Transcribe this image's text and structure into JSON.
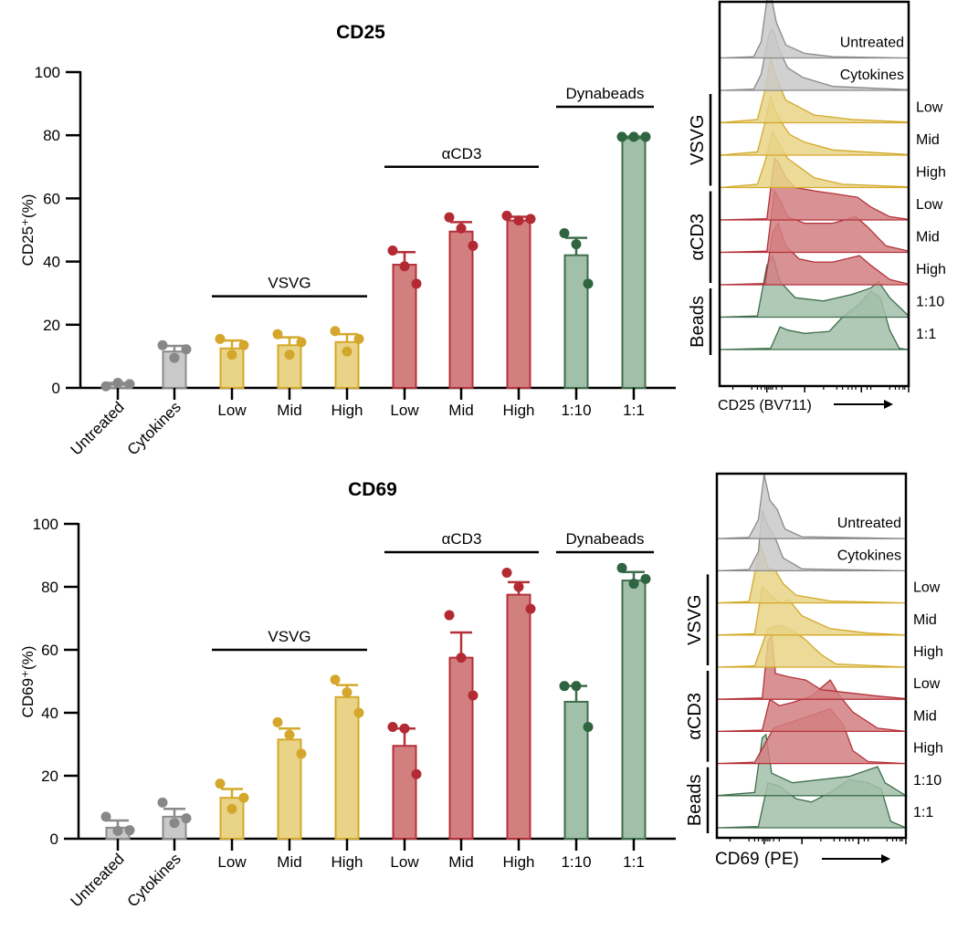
{
  "colors": {
    "gray_fill": "#c9c9c9",
    "gray_stroke": "#8a8a8a",
    "gray_point": "#888888",
    "yellow_fill": "#e8d386",
    "yellow_stroke": "#d4a92a",
    "yellow_point": "#d4a72c",
    "red_fill": "#d27f80",
    "red_stroke": "#b5313a",
    "red_point": "#b32a33",
    "green_fill": "#a2bfaa",
    "green_stroke": "#3e6e4b",
    "green_point": "#2e6540"
  },
  "chart_data": [
    {
      "type": "bar",
      "title": "CD25",
      "xlabel": "",
      "ylabel": "CD25⁺(%)",
      "ylim": [
        0,
        100
      ],
      "yticks": [
        "0",
        "20",
        "40",
        "60",
        "80",
        "100"
      ],
      "categories": [
        "Untreated",
        "Cytokines",
        "Low",
        "Mid",
        "High",
        "Low",
        "Mid",
        "High",
        "1:10",
        "1:1"
      ],
      "category_groups": [
        "gray",
        "gray",
        "yellow",
        "yellow",
        "yellow",
        "red",
        "red",
        "red",
        "green",
        "green"
      ],
      "rotated_labels": [
        true,
        true,
        false,
        false,
        false,
        false,
        false,
        false,
        false,
        false
      ],
      "values": [
        1.0,
        11.5,
        12.5,
        13.5,
        14.5,
        39.0,
        49.5,
        53.0,
        42.0,
        79.0
      ],
      "error_upper": [
        1.6,
        13.3,
        15.0,
        16.0,
        17.0,
        43.0,
        52.5,
        54.2,
        47.5,
        79.6
      ],
      "points": [
        [
          0.5,
          1.6,
          1.2
        ],
        [
          13.5,
          9.5,
          12.2
        ],
        [
          15.5,
          10.5,
          13.5
        ],
        [
          17.0,
          10.5,
          14.5
        ],
        [
          18.0,
          11.5,
          15.5
        ],
        [
          43.5,
          38.5,
          33.0
        ],
        [
          54.0,
          50.5,
          45.0
        ],
        [
          54.5,
          53.0,
          53.5
        ],
        [
          49.0,
          45.5,
          33.0
        ],
        [
          79.5,
          79.5,
          79.5
        ]
      ],
      "brackets": [
        {
          "label": "VSVG",
          "from": 2,
          "to": 4,
          "y": 29
        },
        {
          "label": "αCD3",
          "from": 5,
          "to": 7,
          "y": 70
        },
        {
          "label": "Dynabeads",
          "from": 8,
          "to": 9,
          "y": 89
        }
      ]
    },
    {
      "type": "bar",
      "title": "CD69",
      "xlabel": "",
      "ylabel": "CD69⁺(%)",
      "ylim": [
        0,
        100
      ],
      "yticks": [
        "0",
        "20",
        "40",
        "60",
        "80",
        "100"
      ],
      "categories": [
        "Untreated",
        "Cytokines",
        "Low",
        "Mid",
        "High",
        "Low",
        "Mid",
        "High",
        "1:10",
        "1:1"
      ],
      "category_groups": [
        "gray",
        "gray",
        "yellow",
        "yellow",
        "yellow",
        "red",
        "red",
        "red",
        "green",
        "green"
      ],
      "rotated_labels": [
        true,
        true,
        false,
        false,
        false,
        false,
        false,
        false,
        false,
        false
      ],
      "values": [
        3.5,
        7.0,
        13.0,
        31.5,
        45.0,
        29.5,
        57.5,
        77.5,
        43.5,
        82.0
      ],
      "error_upper": [
        5.8,
        9.5,
        15.8,
        35.0,
        48.8,
        35.0,
        65.5,
        81.5,
        48.5,
        84.7
      ],
      "points": [
        [
          7.0,
          2.5,
          2.7
        ],
        [
          11.5,
          5.0,
          6.5
        ],
        [
          17.5,
          9.5,
          13.0
        ],
        [
          37.0,
          33.0,
          27.0
        ],
        [
          50.5,
          46.5,
          40.0
        ],
        [
          35.5,
          35.0,
          20.5
        ],
        [
          71.0,
          57.5,
          45.5
        ],
        [
          84.5,
          80.0,
          73.0
        ],
        [
          48.5,
          48.5,
          35.5
        ],
        [
          86.0,
          81.0,
          82.5
        ]
      ],
      "brackets": [
        {
          "label": "VSVG",
          "from": 2,
          "to": 4,
          "y": 60
        },
        {
          "label": "αCD3",
          "from": 5,
          "to": 7,
          "y": 91
        },
        {
          "label": "Dynabeads",
          "from": 8,
          "to": 9,
          "y": 91
        }
      ]
    }
  ],
  "histograms": [
    {
      "xlabel": "CD25 (BV711)",
      "tracks": [
        {
          "label": "Untreated",
          "group": "gray"
        },
        {
          "label": "Cytokines",
          "group": "gray"
        },
        {
          "label": "Low",
          "group": "yellow"
        },
        {
          "label": "Mid",
          "group": "yellow"
        },
        {
          "label": "High",
          "group": "yellow"
        },
        {
          "label": "Low",
          "group": "red"
        },
        {
          "label": "Mid",
          "group": "red"
        },
        {
          "label": "High",
          "group": "red"
        },
        {
          "label": "1:10",
          "group": "green"
        },
        {
          "label": "1:1",
          "group": "green"
        }
      ],
      "group_labels": [
        {
          "label": "VSVG",
          "from": 2,
          "to": 4
        },
        {
          "label": "αCD3",
          "from": 5,
          "to": 7
        },
        {
          "label": "Beads",
          "from": 8,
          "to": 9
        }
      ],
      "profiles": [
        [
          [
            0.0,
            0
          ],
          [
            0.18,
            0.02
          ],
          [
            0.22,
            0.25
          ],
          [
            0.25,
            0.9
          ],
          [
            0.27,
            1.0
          ],
          [
            0.3,
            0.55
          ],
          [
            0.35,
            0.2
          ],
          [
            0.45,
            0.07
          ],
          [
            0.6,
            0.02
          ],
          [
            1.0,
            0
          ]
        ],
        [
          [
            0.0,
            0
          ],
          [
            0.18,
            0.02
          ],
          [
            0.22,
            0.25
          ],
          [
            0.26,
            0.85
          ],
          [
            0.28,
            0.95
          ],
          [
            0.32,
            0.6
          ],
          [
            0.36,
            0.35
          ],
          [
            0.44,
            0.2
          ],
          [
            0.6,
            0.06
          ],
          [
            1.0,
            0.01
          ]
        ],
        [
          [
            0.0,
            0
          ],
          [
            0.2,
            0.05
          ],
          [
            0.24,
            0.5
          ],
          [
            0.27,
            1.0
          ],
          [
            0.3,
            0.7
          ],
          [
            0.35,
            0.35
          ],
          [
            0.5,
            0.12
          ],
          [
            0.7,
            0.05
          ],
          [
            1.0,
            0.01
          ]
        ],
        [
          [
            0.0,
            0
          ],
          [
            0.2,
            0.05
          ],
          [
            0.24,
            0.5
          ],
          [
            0.27,
            0.9
          ],
          [
            0.3,
            0.65
          ],
          [
            0.34,
            0.45
          ],
          [
            0.37,
            0.32
          ],
          [
            0.45,
            0.2
          ],
          [
            0.6,
            0.08
          ],
          [
            1.0,
            0.01
          ]
        ],
        [
          [
            0.0,
            0
          ],
          [
            0.2,
            0.05
          ],
          [
            0.24,
            0.4
          ],
          [
            0.28,
            0.85
          ],
          [
            0.31,
            0.7
          ],
          [
            0.36,
            0.45
          ],
          [
            0.43,
            0.3
          ],
          [
            0.5,
            0.15
          ],
          [
            0.65,
            0.05
          ],
          [
            1.0,
            0.01
          ]
        ],
        [
          [
            0.0,
            0
          ],
          [
            0.25,
            0.02
          ],
          [
            0.29,
            0.95
          ],
          [
            0.31,
            0.9
          ],
          [
            0.35,
            0.65
          ],
          [
            0.4,
            0.5
          ],
          [
            0.5,
            0.45
          ],
          [
            0.62,
            0.4
          ],
          [
            0.73,
            0.35
          ],
          [
            0.8,
            0.2
          ],
          [
            0.9,
            0.05
          ],
          [
            1.0,
            0.01
          ]
        ],
        [
          [
            0.0,
            0
          ],
          [
            0.25,
            0.02
          ],
          [
            0.29,
            0.95
          ],
          [
            0.32,
            0.8
          ],
          [
            0.36,
            0.55
          ],
          [
            0.45,
            0.45
          ],
          [
            0.6,
            0.45
          ],
          [
            0.72,
            0.55
          ],
          [
            0.78,
            0.4
          ],
          [
            0.88,
            0.1
          ],
          [
            1.0,
            0.02
          ]
        ],
        [
          [
            0.0,
            0
          ],
          [
            0.24,
            0.02
          ],
          [
            0.28,
            0.8
          ],
          [
            0.31,
            0.95
          ],
          [
            0.35,
            0.6
          ],
          [
            0.42,
            0.4
          ],
          [
            0.5,
            0.35
          ],
          [
            0.6,
            0.35
          ],
          [
            0.74,
            0.45
          ],
          [
            0.8,
            0.3
          ],
          [
            0.9,
            0.08
          ],
          [
            1.0,
            0.01
          ]
        ],
        [
          [
            0.0,
            0
          ],
          [
            0.2,
            0.02
          ],
          [
            0.25,
            0.8
          ],
          [
            0.28,
            0.95
          ],
          [
            0.32,
            0.55
          ],
          [
            0.4,
            0.3
          ],
          [
            0.55,
            0.25
          ],
          [
            0.7,
            0.35
          ],
          [
            0.8,
            0.45
          ],
          [
            0.84,
            0.55
          ],
          [
            0.9,
            0.3
          ],
          [
            1.0,
            0.02
          ]
        ],
        [
          [
            0.0,
            0
          ],
          [
            0.27,
            0.02
          ],
          [
            0.32,
            0.35
          ],
          [
            0.36,
            0.3
          ],
          [
            0.45,
            0.25
          ],
          [
            0.58,
            0.28
          ],
          [
            0.65,
            0.5
          ],
          [
            0.74,
            0.7
          ],
          [
            0.8,
            0.9
          ],
          [
            0.85,
            0.8
          ],
          [
            0.9,
            0.3
          ],
          [
            0.95,
            0.02
          ],
          [
            1.0,
            0
          ]
        ]
      ]
    },
    {
      "xlabel": "CD69 (PE)",
      "tracks": [
        {
          "label": "Untreated",
          "group": "gray"
        },
        {
          "label": "Cytokines",
          "group": "gray"
        },
        {
          "label": "Low",
          "group": "yellow"
        },
        {
          "label": "Mid",
          "group": "yellow"
        },
        {
          "label": "High",
          "group": "yellow"
        },
        {
          "label": "Low",
          "group": "red"
        },
        {
          "label": "Mid",
          "group": "red"
        },
        {
          "label": "High",
          "group": "red"
        },
        {
          "label": "1:10",
          "group": "green"
        },
        {
          "label": "1:1",
          "group": "green"
        }
      ],
      "group_labels": [
        {
          "label": "VSVG",
          "from": 2,
          "to": 4
        },
        {
          "label": "αCD3",
          "from": 5,
          "to": 7
        },
        {
          "label": "Beads",
          "from": 8,
          "to": 9
        }
      ],
      "profiles": [
        [
          [
            0.0,
            0
          ],
          [
            0.17,
            0.02
          ],
          [
            0.22,
            0.3
          ],
          [
            0.25,
            1.0
          ],
          [
            0.28,
            0.6
          ],
          [
            0.32,
            0.45
          ],
          [
            0.36,
            0.15
          ],
          [
            0.45,
            0.03
          ],
          [
            1.0,
            0
          ]
        ],
        [
          [
            0.0,
            0
          ],
          [
            0.17,
            0.02
          ],
          [
            0.22,
            0.3
          ],
          [
            0.24,
            0.95
          ],
          [
            0.27,
            0.7
          ],
          [
            0.31,
            0.5
          ],
          [
            0.35,
            0.2
          ],
          [
            0.45,
            0.03
          ],
          [
            1.0,
            0
          ]
        ],
        [
          [
            0.0,
            0
          ],
          [
            0.17,
            0.02
          ],
          [
            0.23,
            0.9
          ],
          [
            0.27,
            0.55
          ],
          [
            0.31,
            0.5
          ],
          [
            0.35,
            0.3
          ],
          [
            0.42,
            0.12
          ],
          [
            0.6,
            0.03
          ],
          [
            1.0,
            0
          ]
        ],
        [
          [
            0.0,
            0
          ],
          [
            0.2,
            0.02
          ],
          [
            0.24,
            0.75
          ],
          [
            0.29,
            0.6
          ],
          [
            0.34,
            0.5
          ],
          [
            0.38,
            0.55
          ],
          [
            0.45,
            0.3
          ],
          [
            0.6,
            0.1
          ],
          [
            0.8,
            0.03
          ],
          [
            1.0,
            0
          ]
        ],
        [
          [
            0.0,
            0
          ],
          [
            0.2,
            0.02
          ],
          [
            0.27,
            0.6
          ],
          [
            0.33,
            0.65
          ],
          [
            0.38,
            0.6
          ],
          [
            0.46,
            0.45
          ],
          [
            0.55,
            0.2
          ],
          [
            0.63,
            0.05
          ],
          [
            1.0,
            0
          ]
        ],
        [
          [
            0.0,
            0
          ],
          [
            0.24,
            0.02
          ],
          [
            0.27,
            0.9
          ],
          [
            0.29,
            1.0
          ],
          [
            0.31,
            0.4
          ],
          [
            0.38,
            0.35
          ],
          [
            0.47,
            0.3
          ],
          [
            0.55,
            0.15
          ],
          [
            0.7,
            0.1
          ],
          [
            0.85,
            0.05
          ],
          [
            1.0,
            0.01
          ]
        ],
        [
          [
            0.0,
            0
          ],
          [
            0.24,
            0.02
          ],
          [
            0.28,
            0.5
          ],
          [
            0.33,
            0.4
          ],
          [
            0.4,
            0.45
          ],
          [
            0.5,
            0.55
          ],
          [
            0.6,
            0.8
          ],
          [
            0.65,
            0.55
          ],
          [
            0.72,
            0.3
          ],
          [
            0.85,
            0.05
          ],
          [
            1.0,
            0
          ]
        ],
        [
          [
            0.0,
            0
          ],
          [
            0.2,
            0.02
          ],
          [
            0.3,
            0.55
          ],
          [
            0.4,
            0.65
          ],
          [
            0.5,
            0.75
          ],
          [
            0.6,
            0.85
          ],
          [
            0.67,
            0.6
          ],
          [
            0.72,
            0.2
          ],
          [
            0.8,
            0.03
          ],
          [
            1.0,
            0
          ]
        ],
        [
          [
            0.0,
            0
          ],
          [
            0.2,
            0.05
          ],
          [
            0.24,
            0.9
          ],
          [
            0.26,
            0.95
          ],
          [
            0.29,
            0.35
          ],
          [
            0.4,
            0.2
          ],
          [
            0.55,
            0.25
          ],
          [
            0.7,
            0.3
          ],
          [
            0.8,
            0.4
          ],
          [
            0.85,
            0.45
          ],
          [
            0.89,
            0.2
          ],
          [
            1.0,
            0
          ]
        ],
        [
          [
            0.0,
            0
          ],
          [
            0.22,
            0.02
          ],
          [
            0.27,
            0.7
          ],
          [
            0.33,
            0.65
          ],
          [
            0.42,
            0.45
          ],
          [
            0.5,
            0.4
          ],
          [
            0.6,
            0.55
          ],
          [
            0.7,
            0.75
          ],
          [
            0.8,
            0.7
          ],
          [
            0.87,
            0.6
          ],
          [
            0.92,
            0.1
          ],
          [
            1.0,
            0
          ]
        ]
      ]
    }
  ]
}
